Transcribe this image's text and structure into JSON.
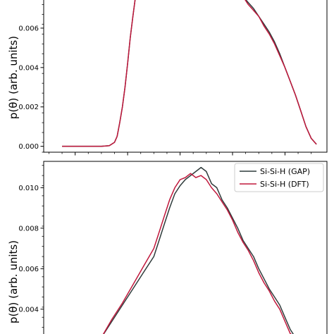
{
  "chart_data": [
    {
      "type": "line",
      "ylabel": "p(θ) (arb. units)",
      "ylim": [
        -0.0003,
        0.0075
      ],
      "yticks": [
        0.0,
        0.002,
        0.004,
        0.006
      ],
      "ytick_labels": [
        "0.000",
        "0.002",
        "0.004",
        "0.006"
      ],
      "xlim": [
        0,
        100
      ],
      "xticks_major": [
        10,
        50,
        90
      ],
      "grid": false,
      "series": [
        {
          "color": "#2f3b3b",
          "points": [
            [
              5,
              0
            ],
            [
              20,
              0
            ],
            [
              23,
              3e-05
            ],
            [
              25,
              0.0002
            ],
            [
              26,
              0.0005
            ],
            [
              27,
              0.0012
            ],
            [
              28,
              0.002
            ],
            [
              29,
              0.003
            ],
            [
              30,
              0.0042
            ],
            [
              31,
              0.0055
            ],
            [
              32,
              0.0066
            ],
            [
              33,
              0.0076
            ],
            [
              74,
              0.0076
            ],
            [
              76,
              0.0073
            ],
            [
              78,
              0.007
            ],
            [
              80,
              0.0066
            ],
            [
              82,
              0.0062
            ],
            [
              84,
              0.0058
            ],
            [
              86,
              0.0053
            ],
            [
              88,
              0.0047
            ],
            [
              90,
              0.004
            ],
            [
              92,
              0.0033
            ],
            [
              94,
              0.0026
            ],
            [
              96,
              0.0018
            ],
            [
              98,
              0.001
            ],
            [
              100,
              0.0004
            ],
            [
              102,
              0.0001
            ]
          ]
        },
        {
          "color": "#c0183c",
          "points": [
            [
              5,
              0
            ],
            [
              20,
              0
            ],
            [
              23,
              3e-05
            ],
            [
              25,
              0.0002
            ],
            [
              26,
              0.0005
            ],
            [
              27,
              0.0012
            ],
            [
              28,
              0.002
            ],
            [
              29,
              0.003
            ],
            [
              30,
              0.0042
            ],
            [
              31,
              0.0055
            ],
            [
              32,
              0.0066
            ],
            [
              33,
              0.0076
            ],
            [
              74,
              0.0076
            ],
            [
              76,
              0.0072
            ],
            [
              78,
              0.0069
            ],
            [
              80,
              0.0066
            ],
            [
              82,
              0.0061
            ],
            [
              84,
              0.0057
            ],
            [
              86,
              0.0052
            ],
            [
              88,
              0.0046
            ],
            [
              90,
              0.004
            ],
            [
              92,
              0.0033
            ],
            [
              94,
              0.0026
            ],
            [
              96,
              0.0018
            ],
            [
              98,
              0.001
            ],
            [
              100,
              0.0004
            ],
            [
              102,
              0.0001
            ]
          ]
        }
      ]
    },
    {
      "type": "line",
      "ylabel": "p(θ) (arb. units)",
      "ylim": [
        0.0026,
        0.0113
      ],
      "yticks": [
        0.004,
        0.006,
        0.008,
        0.01
      ],
      "ytick_labels": [
        "0.004",
        "0.006",
        "0.008",
        "0.010"
      ],
      "xlim": [
        0,
        100
      ],
      "grid": false,
      "legend": "top-right",
      "series": [
        {
          "name": "Si-Si-H (GAP)",
          "color": "#2f3b3b",
          "points": [
            [
              20,
              0.0026
            ],
            [
              24,
              0.0034
            ],
            [
              28,
              0.0042
            ],
            [
              32,
              0.005
            ],
            [
              36,
              0.0058
            ],
            [
              40,
              0.0066
            ],
            [
              42,
              0.0074
            ],
            [
              44,
              0.0082
            ],
            [
              46,
              0.009
            ],
            [
              48,
              0.0097
            ],
            [
              50,
              0.0101
            ],
            [
              52,
              0.0104
            ],
            [
              54,
              0.0106
            ],
            [
              56,
              0.0108
            ],
            [
              58,
              0.011
            ],
            [
              60,
              0.0108
            ],
            [
              62,
              0.0102
            ],
            [
              64,
              0.01
            ],
            [
              66,
              0.0094
            ],
            [
              68,
              0.009
            ],
            [
              70,
              0.0085
            ],
            [
              72,
              0.008
            ],
            [
              74,
              0.0074
            ],
            [
              76,
              0.007
            ],
            [
              78,
              0.0066
            ],
            [
              80,
              0.006
            ],
            [
              82,
              0.0055
            ],
            [
              84,
              0.005
            ],
            [
              86,
              0.0046
            ],
            [
              88,
              0.0042
            ],
            [
              90,
              0.0036
            ],
            [
              92,
              0.003
            ],
            [
              94,
              0.0026
            ]
          ]
        },
        {
          "name": "Si-Si-H (DFT)",
          "color": "#c0183c",
          "points": [
            [
              20,
              0.0026
            ],
            [
              24,
              0.0035
            ],
            [
              28,
              0.0043
            ],
            [
              32,
              0.0052
            ],
            [
              36,
              0.0061
            ],
            [
              40,
              0.007
            ],
            [
              42,
              0.0078
            ],
            [
              44,
              0.0086
            ],
            [
              46,
              0.0094
            ],
            [
              48,
              0.01
            ],
            [
              50,
              0.0104
            ],
            [
              52,
              0.0105
            ],
            [
              54,
              0.0107
            ],
            [
              56,
              0.0105
            ],
            [
              58,
              0.0106
            ],
            [
              60,
              0.0104
            ],
            [
              62,
              0.01
            ],
            [
              64,
              0.0097
            ],
            [
              66,
              0.0093
            ],
            [
              68,
              0.0089
            ],
            [
              70,
              0.0084
            ],
            [
              72,
              0.0078
            ],
            [
              74,
              0.0073
            ],
            [
              76,
              0.0069
            ],
            [
              78,
              0.0064
            ],
            [
              80,
              0.0058
            ],
            [
              82,
              0.0053
            ],
            [
              84,
              0.0049
            ],
            [
              86,
              0.0044
            ],
            [
              88,
              0.004
            ],
            [
              90,
              0.0034
            ],
            [
              92,
              0.0028
            ],
            [
              94,
              0.0026
            ]
          ]
        }
      ]
    }
  ]
}
